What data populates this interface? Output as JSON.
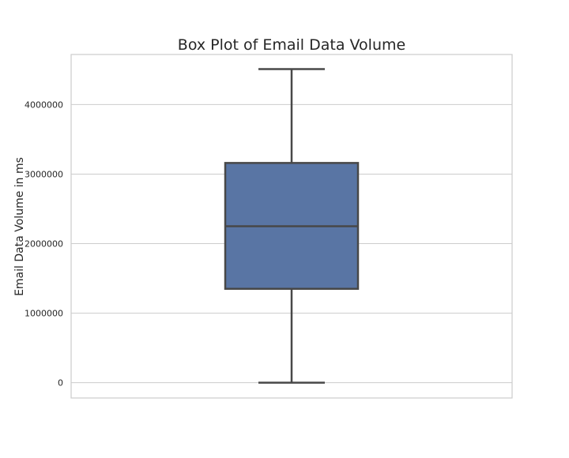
{
  "chart_data": {
    "type": "box",
    "title": "Box Plot of Email Data Volume",
    "xlabel": "",
    "ylabel": "Email Data Volume in ms",
    "ylim": [
      -220000,
      4720000
    ],
    "yticks": [
      0,
      1000000,
      2000000,
      3000000,
      4000000
    ],
    "ytick_labels": [
      "0",
      "1000000",
      "2000000",
      "3000000",
      "4000000"
    ],
    "grid": true,
    "box": {
      "whisker_low": 0,
      "q1": 1350000,
      "median": 2250000,
      "q3": 3160000,
      "whisker_high": 4510000
    },
    "colors": {
      "box_fill": "#5975a4",
      "line": "#484848",
      "grid": "#cccccc",
      "frame": "#cccccc"
    }
  }
}
